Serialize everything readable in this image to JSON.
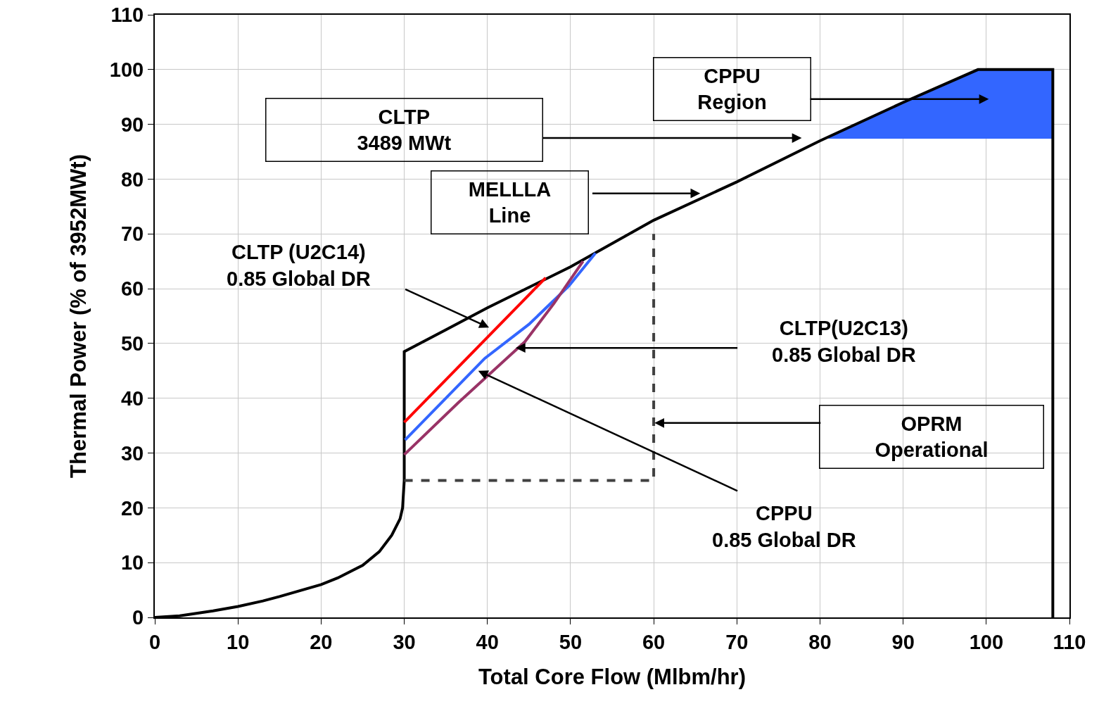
{
  "chart_data": {
    "type": "line",
    "xlabel": "Total Core Flow (Mlbm/hr)",
    "ylabel": "Thermal Power (% of 3952MWt)",
    "xlim": [
      0,
      110
    ],
    "xticks": [
      0,
      10,
      20,
      30,
      40,
      50,
      60,
      70,
      80,
      90,
      100,
      110
    ],
    "ylim": [
      0,
      110
    ],
    "yticks": [
      0,
      10,
      20,
      30,
      40,
      50,
      60,
      70,
      80,
      90,
      100,
      110
    ],
    "grid": true,
    "marker": "none",
    "series": [
      {
        "type": "area",
        "color": "#3366ff",
        "x": [
          81,
          90,
          99,
          108,
          108,
          81
        ],
        "values": [
          87.5,
          94,
          100,
          100,
          87.5,
          87.5
        ]
      },
      {
        "color": "#000000",
        "x": [
          0,
          3,
          7,
          10,
          13,
          15,
          20,
          22,
          25,
          27,
          28.5,
          29.5,
          29.8,
          30,
          30,
          35,
          40,
          50,
          60,
          70,
          80,
          90,
          99,
          108,
          108
        ],
        "values": [
          0,
          0.3,
          1.2,
          2,
          3,
          3.8,
          6,
          7.2,
          9.5,
          12,
          15,
          18,
          20,
          25,
          48.5,
          52.5,
          56.5,
          64,
          72.5,
          79.5,
          87,
          94,
          100,
          100,
          0
        ]
      },
      {
        "color": "#404040",
        "line_style": "dashed",
        "x": [
          30,
          60,
          60
        ],
        "values": [
          25,
          25,
          70
        ]
      },
      {
        "color": "#ff0000",
        "x": [
          30,
          45.2,
          47
        ],
        "values": [
          35.6,
          59.2,
          62
        ]
      },
      {
        "color": "#3366ff",
        "x": [
          30.1,
          39.7,
          45,
          49.8,
          53
        ],
        "values": [
          32.4,
          47.3,
          53.5,
          60.5,
          66.5
        ]
      },
      {
        "color": "#993366",
        "x": [
          30,
          36.5,
          44.5,
          48,
          51.5
        ],
        "values": [
          29.7,
          39.2,
          50.3,
          57.3,
          65
        ]
      }
    ],
    "annotations": [
      "CLTP\n3489 MWt",
      "MELLLA\nLine",
      "CPPU\nRegion",
      "CLTP (U2C14)\n0.85 Global DR",
      "CLTP(U2C13)\n0.85 Global DR",
      "OPRM\nOperational",
      {
        "text": "CPPU\n0.85 Global DR",
        "x": 38.9,
        "y": 45
      }
    ]
  }
}
